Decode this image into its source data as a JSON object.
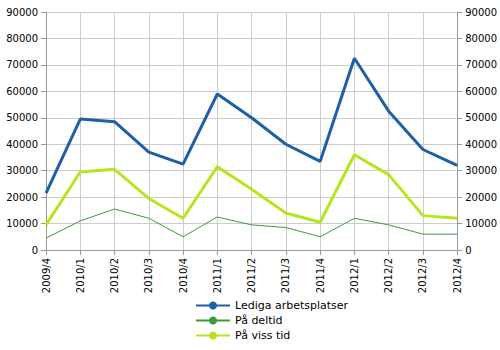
{
  "chart_data": {
    "type": "line",
    "categories": [
      "2009/4",
      "2010/1",
      "2010/2",
      "2010/3",
      "2010/4",
      "2011/1",
      "2011/2",
      "2011/3",
      "2011/4",
      "2012/1",
      "2012/2",
      "2012/3",
      "2012/4"
    ],
    "series": [
      {
        "name": "Lediga arbetsplatser",
        "color": "#1f5fa6",
        "values": [
          21500,
          49500,
          48500,
          37000,
          32500,
          59000,
          50000,
          40000,
          33500,
          72500,
          52500,
          38000,
          32000
        ]
      },
      {
        "name": "På deltid",
        "color": "#3c9b3c",
        "values": [
          4500,
          11000,
          15500,
          12000,
          5000,
          12500,
          9500,
          8500,
          5000,
          12000,
          9500,
          6000,
          6000
        ]
      },
      {
        "name": "På viss tid",
        "color": "#b5e61d",
        "values": [
          9500,
          29500,
          30500,
          19500,
          12000,
          31500,
          23000,
          14000,
          10500,
          36000,
          28500,
          13000,
          12000
        ]
      }
    ],
    "ylim": [
      0,
      90000
    ],
    "yticks": [
      0,
      10000,
      20000,
      30000,
      40000,
      50000,
      60000,
      70000,
      80000,
      90000
    ],
    "y2lim": [
      0,
      90000
    ],
    "y2ticks": [
      0,
      10000,
      20000,
      30000,
      40000,
      50000,
      60000,
      70000,
      80000,
      90000
    ],
    "grid": true,
    "legend": "bottom"
  }
}
